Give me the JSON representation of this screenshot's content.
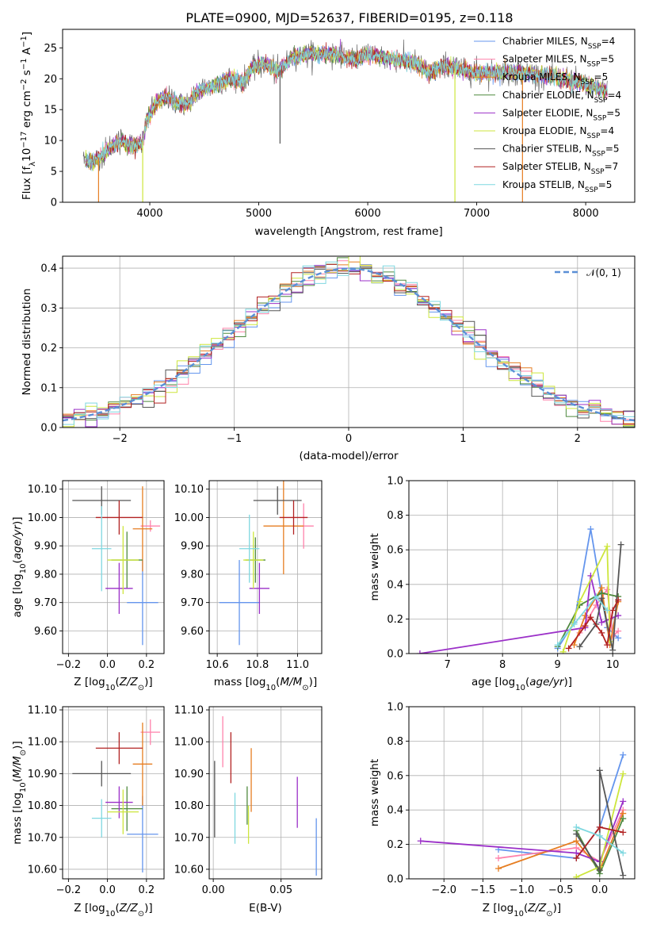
{
  "figure_title": "PLATE=0900, MJD=52637, FIBERID=0195, z=0.118",
  "colors": {
    "c0": "#6495ed",
    "c1": "#ff82ab",
    "c2": "#e67e22",
    "c3": "#4f8a3f",
    "c4": "#9b30c8",
    "c5": "#cde63c",
    "c6": "#555555",
    "c7": "#b22222",
    "c8": "#7fd8e0"
  },
  "legend_spectrum": [
    {
      "label": "Chabrier MILES, N$_{SSP}$=4",
      "text": "Chabrier MILES, N",
      "sub": "SSP",
      "tail": "=4",
      "color": "#6495ed"
    },
    {
      "label": "Salpeter MILES",
      "text": "Salpeter MILES, N",
      "sub": "SSP",
      "tail": "=5",
      "color": "#ff82ab"
    },
    {
      "label": "Kroupa MILES",
      "text": "Kroupa MILES, N",
      "sub": "SSP",
      "tail": "=5",
      "color": "#e67e22"
    },
    {
      "label": "Chabrier ELODIE",
      "text": "Chabrier ELODIE, N",
      "sub": "SSP",
      "tail": "=4",
      "color": "#4f8a3f"
    },
    {
      "label": "Salpeter ELODIE",
      "text": "Salpeter ELODIE, N",
      "sub": "SSP",
      "tail": "=5",
      "color": "#9b30c8"
    },
    {
      "label": "Kroupa ELODIE",
      "text": "Kroupa ELODIE, N",
      "sub": "SSP",
      "tail": "=4",
      "color": "#cde63c"
    },
    {
      "label": "Chabrier STELIB",
      "text": "Chabrier STELIB, N",
      "sub": "SSP",
      "tail": "=5",
      "color": "#555555"
    },
    {
      "label": "Salpeter STELIB",
      "text": "Salpeter STELIB, N",
      "sub": "SSP",
      "tail": "=7",
      "color": "#b22222"
    },
    {
      "label": "Kroupa STELIB",
      "text": "Kroupa STELIB, N",
      "sub": "SSP",
      "tail": "=5",
      "color": "#7fd8e0"
    }
  ],
  "legend_hist": "𝒩(0, 1)",
  "chart_data": [
    {
      "id": "spectrum",
      "type": "line",
      "xlabel": "wavelength [Angstrom, rest frame]",
      "ylabel": "Flux [f_λ 10^-17 erg cm^-2 s^-1 A^-1]",
      "xlim": [
        3200,
        8450
      ],
      "ylim": [
        0,
        28
      ],
      "xticks": [
        4000,
        5000,
        6000,
        7000,
        8000
      ],
      "yticks": [
        0,
        5,
        10,
        15,
        20,
        25
      ],
      "anchors": [
        [
          3400,
          7
        ],
        [
          3480,
          6.5
        ],
        [
          3550,
          7.5
        ],
        [
          3650,
          9
        ],
        [
          3750,
          10
        ],
        [
          3850,
          9
        ],
        [
          3930,
          9.5
        ],
        [
          3970,
          13
        ],
        [
          4050,
          16
        ],
        [
          4150,
          17
        ],
        [
          4250,
          16
        ],
        [
          4350,
          16
        ],
        [
          4450,
          18
        ],
        [
          4600,
          19
        ],
        [
          4750,
          20
        ],
        [
          4861,
          19.5
        ],
        [
          4950,
          22
        ],
        [
          5050,
          22.5
        ],
        [
          5175,
          21
        ],
        [
          5300,
          23.5
        ],
        [
          5450,
          24
        ],
        [
          5550,
          24
        ],
        [
          5700,
          24
        ],
        [
          5890,
          23
        ],
        [
          6000,
          24
        ],
        [
          6150,
          23.5
        ],
        [
          6300,
          23
        ],
        [
          6450,
          22.5
        ],
        [
          6563,
          21
        ],
        [
          6700,
          22
        ],
        [
          6850,
          21.5
        ],
        [
          7000,
          21
        ],
        [
          7200,
          21
        ],
        [
          7400,
          21
        ],
        [
          7600,
          20.5
        ],
        [
          7800,
          20
        ],
        [
          8000,
          19
        ],
        [
          8200,
          18
        ]
      ],
      "dips": [
        [
          3530,
          0,
          "#e67e22"
        ],
        [
          3935,
          0,
          "#cde63c"
        ],
        [
          5195,
          9.5,
          "#555555"
        ],
        [
          6800,
          0,
          "#cde63c"
        ],
        [
          7420,
          0,
          "#e67e22"
        ]
      ]
    },
    {
      "id": "residuals",
      "type": "histogram",
      "xlabel": "(data-model)/error",
      "ylabel": "Normed distribution",
      "xlim": [
        -2.5,
        2.5
      ],
      "ylim": [
        0,
        0.43
      ],
      "xticks": [
        -2,
        -1,
        0,
        1,
        2
      ],
      "yticks": [
        0.0,
        0.1,
        0.2,
        0.3,
        0.4
      ],
      "bin_width": 0.1,
      "grid": true,
      "legend_position": "top-right"
    },
    {
      "id": "age_vs_Z",
      "type": "errorbar",
      "xlabel": "Z [log10(Z/Z☉)]",
      "ylabel": "age [log10(age/yr)]",
      "xlim": [
        -0.23,
        0.29
      ],
      "ylim": [
        9.52,
        10.13
      ],
      "xticks": [
        -0.2,
        0.0,
        0.2
      ],
      "yticks": [
        9.6,
        9.7,
        9.8,
        9.9,
        10.0,
        10.1
      ],
      "points": [
        {
          "x": 0.18,
          "y": 9.7,
          "xerr": 0.08,
          "yerr": 0.15,
          "color": "#6495ed"
        },
        {
          "x": 0.22,
          "y": 9.97,
          "xerr": 0.05,
          "yerr": 0.02,
          "color": "#ff82ab"
        },
        {
          "x": 0.18,
          "y": 9.96,
          "xerr": 0.05,
          "yerr": 0.15,
          "color": "#e67e22"
        },
        {
          "x": 0.1,
          "y": 9.85,
          "xerr": 0.08,
          "yerr": 0.1,
          "color": "#4f8a3f"
        },
        {
          "x": 0.06,
          "y": 9.75,
          "xerr": 0.07,
          "yerr": 0.09,
          "color": "#9b30c8"
        },
        {
          "x": 0.08,
          "y": 9.85,
          "xerr": 0.08,
          "yerr": 0.12,
          "color": "#cde63c"
        },
        {
          "x": -0.03,
          "y": 10.06,
          "xerr": 0.15,
          "yerr": 0.05,
          "color": "#555555"
        },
        {
          "x": 0.06,
          "y": 10.0,
          "xerr": 0.12,
          "yerr": 0.06,
          "color": "#b22222"
        },
        {
          "x": -0.03,
          "y": 9.89,
          "xerr": 0.05,
          "yerr": 0.15,
          "color": "#7fd8e0"
        }
      ]
    },
    {
      "id": "age_vs_mass",
      "type": "errorbar",
      "xlabel": "mass [log10(M/M☉)]",
      "ylabel": "",
      "xlim": [
        10.56,
        11.12
      ],
      "ylim": [
        9.52,
        10.13
      ],
      "xticks": [
        10.6,
        10.8,
        11.0
      ],
      "yticks": [
        9.6,
        9.7,
        9.8,
        9.9,
        10.0,
        10.1
      ],
      "points": [
        {
          "x": 10.71,
          "y": 9.7,
          "xerr": 0.1,
          "yerr": 0.15,
          "color": "#6495ed"
        },
        {
          "x": 11.03,
          "y": 9.97,
          "xerr": 0.05,
          "yerr": 0.08,
          "color": "#ff82ab"
        },
        {
          "x": 10.93,
          "y": 9.97,
          "xerr": 0.1,
          "yerr": 0.17,
          "color": "#e67e22"
        },
        {
          "x": 10.79,
          "y": 9.85,
          "xerr": 0.05,
          "yerr": 0.08,
          "color": "#4f8a3f"
        },
        {
          "x": 10.81,
          "y": 9.75,
          "xerr": 0.05,
          "yerr": 0.09,
          "color": "#9b30c8"
        },
        {
          "x": 10.78,
          "y": 9.85,
          "xerr": 0.05,
          "yerr": 0.1,
          "color": "#cde63c"
        },
        {
          "x": 10.9,
          "y": 10.06,
          "xerr": 0.12,
          "yerr": 0.05,
          "color": "#555555"
        },
        {
          "x": 10.98,
          "y": 10.0,
          "xerr": 0.07,
          "yerr": 0.06,
          "color": "#b22222"
        },
        {
          "x": 10.76,
          "y": 9.89,
          "xerr": 0.05,
          "yerr": 0.12,
          "color": "#7fd8e0"
        }
      ]
    },
    {
      "id": "weight_vs_age",
      "type": "line",
      "xlabel": "age [log10(age/yr)]",
      "ylabel": "mass weight",
      "xlim": [
        6.3,
        10.4
      ],
      "ylim": [
        0,
        1
      ],
      "xticks": [
        7,
        8,
        9,
        10
      ],
      "yticks": [
        0.0,
        0.2,
        0.4,
        0.6,
        0.8,
        1.0
      ],
      "series": [
        {
          "color": "#6495ed",
          "x": [
            9.0,
            9.3,
            9.6,
            9.9,
            10.1
          ],
          "y": [
            0.03,
            0.18,
            0.72,
            0.15,
            0.09
          ]
        },
        {
          "color": "#ff82ab",
          "x": [
            9.4,
            9.7,
            9.9,
            10.0,
            10.1
          ],
          "y": [
            0.12,
            0.28,
            0.37,
            0.1,
            0.13
          ]
        },
        {
          "color": "#e67e22",
          "x": [
            9.3,
            9.5,
            9.8,
            9.95,
            10.1
          ],
          "y": [
            0.05,
            0.22,
            0.38,
            0.05,
            0.3
          ]
        },
        {
          "color": "#4f8a3f",
          "x": [
            9.0,
            9.4,
            9.8,
            10.1
          ],
          "y": [
            0.04,
            0.28,
            0.35,
            0.33
          ]
        },
        {
          "color": "#9b30c8",
          "x": [
            6.5,
            9.5,
            9.6,
            9.8,
            10.1
          ],
          "y": [
            0.0,
            0.15,
            0.45,
            0.18,
            0.22
          ]
        },
        {
          "color": "#cde63c",
          "x": [
            9.1,
            9.4,
            9.9,
            9.95
          ],
          "y": [
            0.01,
            0.3,
            0.62,
            0.07
          ]
        },
        {
          "color": "#555555",
          "x": [
            9.4,
            9.7,
            9.8,
            10.0,
            10.15
          ],
          "y": [
            0.04,
            0.17,
            0.32,
            0.02,
            0.63
          ]
        },
        {
          "color": "#b22222",
          "x": [
            9.2,
            9.5,
            9.6,
            9.8,
            9.9,
            10.0,
            10.1
          ],
          "y": [
            0.03,
            0.16,
            0.21,
            0.12,
            0.05,
            0.25,
            0.31
          ]
        },
        {
          "color": "#7fd8e0",
          "x": [
            9.0,
            9.3,
            9.7,
            9.9
          ],
          "y": [
            0.05,
            0.17,
            0.33,
            0.25
          ]
        }
      ]
    },
    {
      "id": "mass_vs_Z",
      "type": "errorbar",
      "xlabel": "Z [log10(Z/Z☉)]",
      "ylabel": "mass [log10(M/M☉)]",
      "xlim": [
        -0.23,
        0.29
      ],
      "ylim": [
        10.57,
        11.11
      ],
      "xticks": [
        -0.2,
        0.0,
        0.2
      ],
      "yticks": [
        10.6,
        10.7,
        10.8,
        10.9,
        11.0,
        11.1
      ],
      "points": [
        {
          "x": 0.18,
          "y": 10.71,
          "xerr": 0.08,
          "yerr": 0.12,
          "color": "#6495ed"
        },
        {
          "x": 0.22,
          "y": 11.03,
          "xerr": 0.05,
          "yerr": 0.04,
          "color": "#ff82ab"
        },
        {
          "x": 0.18,
          "y": 10.93,
          "xerr": 0.05,
          "yerr": 0.13,
          "color": "#e67e22"
        },
        {
          "x": 0.1,
          "y": 10.79,
          "xerr": 0.08,
          "yerr": 0.07,
          "color": "#4f8a3f"
        },
        {
          "x": 0.06,
          "y": 10.81,
          "xerr": 0.07,
          "yerr": 0.05,
          "color": "#9b30c8"
        },
        {
          "x": 0.08,
          "y": 10.78,
          "xerr": 0.08,
          "yerr": 0.07,
          "color": "#cde63c"
        },
        {
          "x": -0.03,
          "y": 10.9,
          "xerr": 0.15,
          "yerr": 0.04,
          "color": "#555555"
        },
        {
          "x": 0.06,
          "y": 10.98,
          "xerr": 0.12,
          "yerr": 0.05,
          "color": "#b22222"
        },
        {
          "x": -0.03,
          "y": 10.76,
          "xerr": 0.05,
          "yerr": 0.06,
          "color": "#7fd8e0"
        }
      ]
    },
    {
      "id": "mass_vs_EBV",
      "type": "errorbar",
      "xlabel": "E(B-V)",
      "ylabel": "",
      "xlim": [
        -0.003,
        0.08
      ],
      "ylim": [
        10.57,
        11.11
      ],
      "xticks": [
        0.0,
        0.05
      ],
      "xticklabels": [
        "0.00",
        "0.05"
      ],
      "yticks": [
        10.6,
        10.7,
        10.8,
        10.9,
        11.0,
        11.1
      ],
      "points": [
        {
          "x": 0.076,
          "y": 10.67,
          "xerr": 0,
          "yerr": 0.09,
          "color": "#6495ed"
        },
        {
          "x": 0.007,
          "y": 11.0,
          "xerr": 0,
          "yerr": 0.08,
          "color": "#ff82ab"
        },
        {
          "x": 0.028,
          "y": 10.88,
          "xerr": 0,
          "yerr": 0.1,
          "color": "#e67e22"
        },
        {
          "x": 0.025,
          "y": 10.8,
          "xerr": 0,
          "yerr": 0.06,
          "color": "#4f8a3f"
        },
        {
          "x": 0.062,
          "y": 10.81,
          "xerr": 0,
          "yerr": 0.08,
          "color": "#9b30c8"
        },
        {
          "x": 0.026,
          "y": 10.74,
          "xerr": 0,
          "yerr": 0.06,
          "color": "#cde63c"
        },
        {
          "x": 0.001,
          "y": 10.82,
          "xerr": 0,
          "yerr": 0.12,
          "color": "#555555"
        },
        {
          "x": 0.013,
          "y": 10.95,
          "xerr": 0,
          "yerr": 0.08,
          "color": "#b22222"
        },
        {
          "x": 0.016,
          "y": 10.76,
          "xerr": 0,
          "yerr": 0.08,
          "color": "#7fd8e0"
        }
      ]
    },
    {
      "id": "weight_vs_Z",
      "type": "line",
      "xlabel": "Z [log10(Z/Z☉)]",
      "ylabel": "mass weight",
      "xlim": [
        -2.45,
        0.45
      ],
      "ylim": [
        0,
        1
      ],
      "xticks": [
        -2.0,
        -1.5,
        -1.0,
        -0.5,
        0.0
      ],
      "yticks": [
        0.0,
        0.2,
        0.4,
        0.6,
        0.8,
        1.0
      ],
      "series": [
        {
          "color": "#6495ed",
          "x": [
            -1.3,
            -0.3,
            0.0,
            0.3
          ],
          "y": [
            0.17,
            0.12,
            0.3,
            0.72
          ]
        },
        {
          "color": "#ff82ab",
          "x": [
            -1.3,
            -0.3,
            0.0,
            0.3
          ],
          "y": [
            0.12,
            0.18,
            0.1,
            0.4
          ]
        },
        {
          "color": "#e67e22",
          "x": [
            -1.3,
            -0.3,
            0.0,
            0.3
          ],
          "y": [
            0.06,
            0.22,
            0.05,
            0.38
          ]
        },
        {
          "color": "#4f8a3f",
          "x": [
            -0.3,
            0.0,
            0.3
          ],
          "y": [
            0.28,
            0.03,
            0.35
          ]
        },
        {
          "color": "#9b30c8",
          "x": [
            -2.3,
            -0.3,
            0.0,
            0.3
          ],
          "y": [
            0.22,
            0.15,
            0.1,
            0.45
          ]
        },
        {
          "color": "#cde63c",
          "x": [
            -0.3,
            0.0,
            0.3
          ],
          "y": [
            0.01,
            0.07,
            0.61
          ]
        },
        {
          "color": "#555555",
          "x": [
            -0.3,
            0.0,
            0.0,
            0.3
          ],
          "y": [
            0.26,
            0.05,
            0.63,
            0.02
          ]
        },
        {
          "color": "#b22222",
          "x": [
            -0.3,
            0.0,
            0.3
          ],
          "y": [
            0.12,
            0.3,
            0.27
          ]
        },
        {
          "color": "#7fd8e0",
          "x": [
            -0.3,
            0.0,
            0.3
          ],
          "y": [
            0.3,
            0.25,
            0.15
          ]
        }
      ]
    }
  ]
}
